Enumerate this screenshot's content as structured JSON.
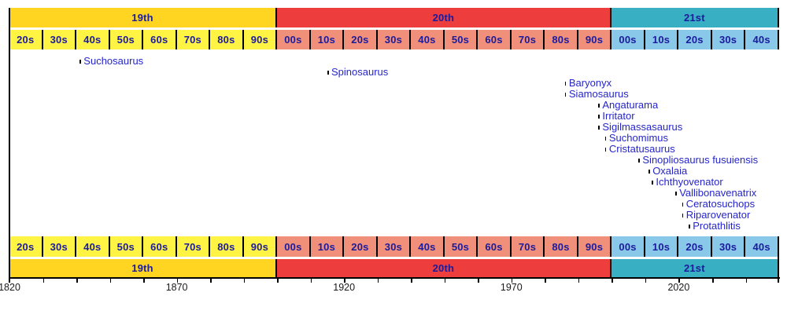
{
  "chart_data": {
    "type": "timeline",
    "subject": "spinosaur-genera-naming-timeline",
    "axis": {
      "start_year": 1820,
      "end_year": 2050,
      "minor_tick_interval_years": 10,
      "labels": [
        "1820",
        "1870",
        "1920",
        "1970",
        "2020"
      ]
    },
    "centuries": [
      {
        "label": "19th",
        "start": 1820,
        "end": 1900,
        "band_color": "#ffd521",
        "decade_color": "#fff444"
      },
      {
        "label": "20th",
        "start": 1900,
        "end": 2000,
        "band_color": "#ee3d3d",
        "decade_color": "#f0907a"
      },
      {
        "label": "21st",
        "start": 2000,
        "end": 2050,
        "band_color": "#39afc3",
        "decade_color": "#8ac8e9"
      }
    ],
    "decades": [
      "20s",
      "30s",
      "40s",
      "50s",
      "60s",
      "70s",
      "80s",
      "90s",
      "00s",
      "10s",
      "20s",
      "30s",
      "40s",
      "50s",
      "60s",
      "70s",
      "80s",
      "90s",
      "00s",
      "10s",
      "20s",
      "30s",
      "40s"
    ],
    "taxa": [
      {
        "name": "Suchosaurus",
        "year": 1841
      },
      {
        "name": "Spinosaurus",
        "year": 1915
      },
      {
        "name": "Baryonyx",
        "year": 1986
      },
      {
        "name": "Siamosaurus",
        "year": 1986
      },
      {
        "name": "Angaturama",
        "year": 1996
      },
      {
        "name": "Irritator",
        "year": 1996
      },
      {
        "name": "Sigilmassasaurus",
        "year": 1996
      },
      {
        "name": "Suchomimus",
        "year": 1998
      },
      {
        "name": "Cristatusaurus",
        "year": 1998
      },
      {
        "name": "Sinopliosaurus fusuiensis",
        "year": 2008
      },
      {
        "name": "Oxalaia",
        "year": 2011
      },
      {
        "name": "Ichthyovenator",
        "year": 2012
      },
      {
        "name": "Vallibonavenatrix",
        "year": 2019
      },
      {
        "name": "Ceratosuchops",
        "year": 2021
      },
      {
        "name": "Riparovenator",
        "year": 2021
      },
      {
        "name": "Protathlitis",
        "year": 2023
      }
    ],
    "colors": {
      "band_text": "#1b1b9e",
      "taxon_text": "#2525ce",
      "axis_text": "#1a1a1a",
      "tick": "#000000",
      "background": "#ffffff"
    },
    "layout_hints": {
      "grid": "off",
      "legend": "none",
      "decade_rows": "mirrored top and bottom",
      "century_rows": "mirrored top and bottom"
    }
  }
}
